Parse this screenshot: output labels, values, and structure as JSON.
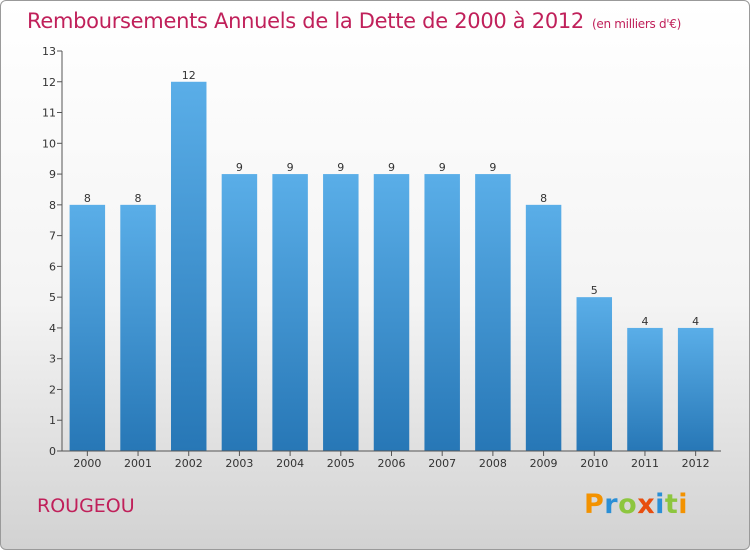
{
  "header": {
    "title": "Remboursements Annuels de la Dette de 2000 à 2012",
    "subtitle": "(en milliers d'€)"
  },
  "footer": {
    "place": "ROUGEOU",
    "brand": [
      "P",
      "r",
      "o",
      "x",
      "i",
      "t",
      "i"
    ]
  },
  "colors": {
    "title": "#c0205a",
    "bar_top": "#5aaee8",
    "bar_bottom": "#2777b6",
    "brand": [
      "#f39200",
      "#2a8fd6",
      "#8dc63f",
      "#e84e0f",
      "#2a8fd6",
      "#8dc63f",
      "#f39200"
    ]
  },
  "chart_data": {
    "type": "bar",
    "title": "Remboursements Annuels de la Dette de 2000 à 2012",
    "subtitle": "(en milliers d'€)",
    "categories": [
      "2000",
      "2001",
      "2002",
      "2003",
      "2004",
      "2005",
      "2006",
      "2007",
      "2008",
      "2009",
      "2010",
      "2011",
      "2012"
    ],
    "values": [
      8,
      8,
      12,
      9,
      9,
      9,
      9,
      9,
      9,
      8,
      5,
      4,
      4
    ],
    "ylim": [
      0,
      13
    ],
    "yticks": [
      0,
      1,
      2,
      3,
      4,
      5,
      6,
      7,
      8,
      9,
      10,
      11,
      12,
      13
    ],
    "grid": false,
    "legend": "none"
  }
}
